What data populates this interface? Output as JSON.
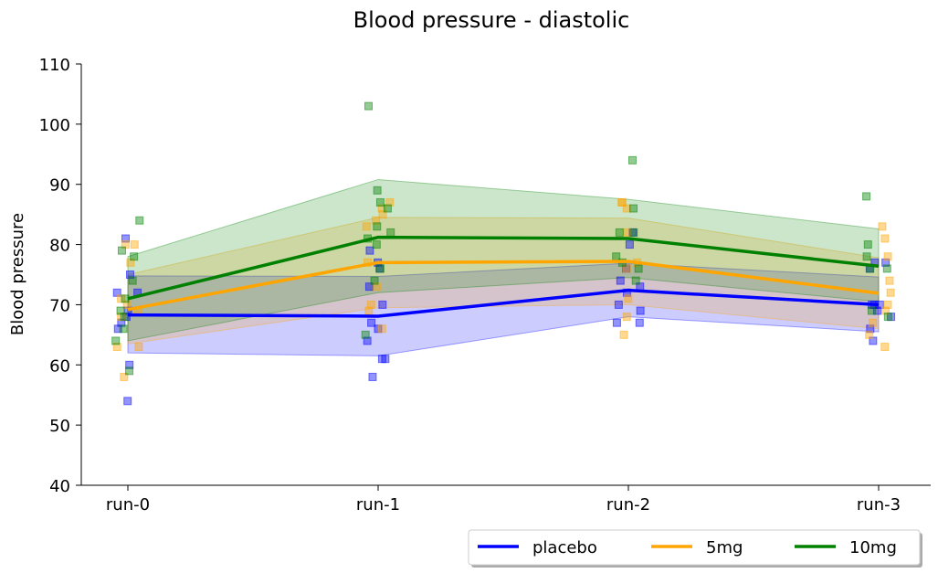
{
  "chart_data": {
    "type": "line",
    "title": "Blood pressure - diastolic",
    "xlabel": "",
    "ylabel": "Blood pressure",
    "ylim": [
      40,
      110
    ],
    "yticks": [
      40,
      50,
      60,
      70,
      80,
      90,
      100,
      110
    ],
    "categories": [
      "run-0",
      "run-1",
      "run-2",
      "run-3"
    ],
    "grid": false,
    "legend": {
      "placement": "bottom-right, below axes",
      "columns": 3,
      "shadow": true
    },
    "series": [
      {
        "name": "placebo",
        "color": "#0000ff",
        "mean": [
          68.3,
          68.1,
          72.4,
          70.0
        ],
        "band_lower": [
          62.0,
          61.5,
          68.0,
          65.5
        ],
        "band_upper": [
          74.8,
          74.7,
          76.9,
          74.6
        ],
        "points": [
          [
            54,
            60,
            66,
            67,
            68,
            69,
            72,
            72,
            75,
            81
          ],
          [
            58,
            61,
            61,
            64,
            66,
            67,
            70,
            73,
            76,
            77,
            79
          ],
          [
            67,
            67,
            69,
            70,
            72,
            73,
            74,
            76,
            80,
            82
          ],
          [
            64,
            66,
            68,
            69,
            70,
            70,
            70,
            76,
            77,
            77
          ]
        ]
      },
      {
        "name": "5mg",
        "color": "#ffa500",
        "mean": [
          69.2,
          77.0,
          77.2,
          71.9
        ],
        "band_lower": [
          63.5,
          69.5,
          70.0,
          66.0
        ],
        "band_upper": [
          75.0,
          84.5,
          84.4,
          77.8
        ],
        "points": [
          [
            58,
            63,
            63,
            68,
            69,
            70,
            71,
            77,
            80,
            80
          ],
          [
            66,
            69,
            70,
            73,
            77,
            83,
            84,
            85,
            86,
            87
          ],
          [
            65,
            68,
            71,
            76,
            77,
            82,
            86,
            87,
            87
          ],
          [
            63,
            65,
            67,
            69,
            70,
            72,
            74,
            78,
            81,
            83
          ]
        ]
      },
      {
        "name": "10mg",
        "color": "#008000",
        "mean": [
          71.0,
          81.2,
          81.0,
          76.4
        ],
        "band_lower": [
          64.0,
          72.0,
          74.5,
          70.5
        ],
        "band_upper": [
          78.0,
          90.8,
          87.5,
          82.6
        ],
        "points": [
          [
            59,
            64,
            66,
            68,
            69,
            71,
            74,
            78,
            79,
            84
          ],
          [
            65,
            74,
            76,
            80,
            81,
            82,
            83,
            86,
            87,
            89,
            103
          ],
          [
            74,
            76,
            77,
            78,
            82,
            82,
            86,
            94
          ],
          [
            68,
            69,
            76,
            76,
            78,
            80,
            88
          ]
        ]
      }
    ]
  }
}
